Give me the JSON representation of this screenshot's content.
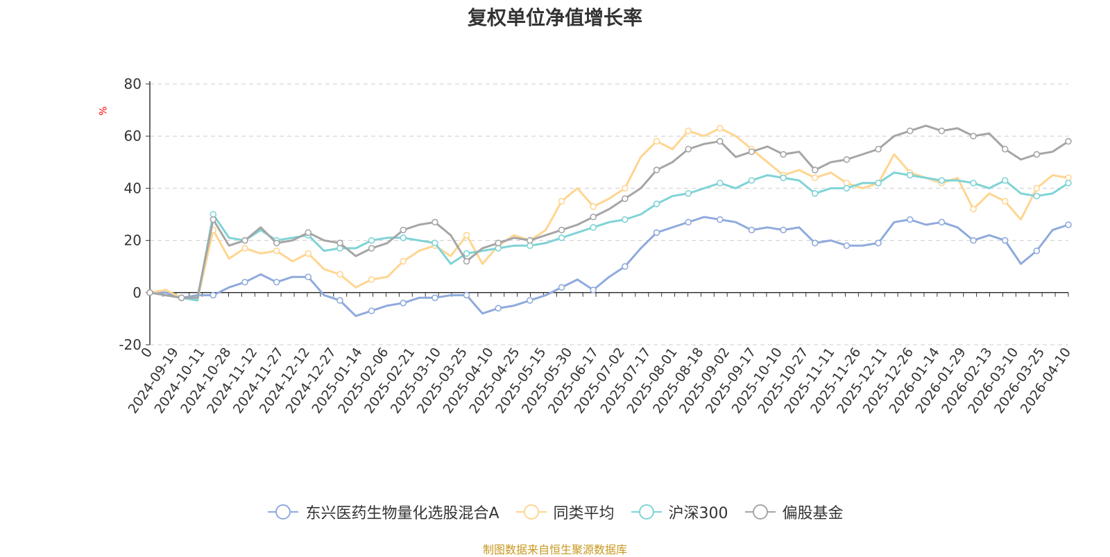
{
  "chart_data": {
    "type": "line",
    "title": "复权单位净值增长率",
    "ylabel": "%",
    "ylim": [
      -20,
      80
    ],
    "yticks": [
      "-20",
      "0",
      "20",
      "40",
      "60",
      "80"
    ],
    "grid": true,
    "legend_position": "bottom",
    "x_labels": [
      "0",
      "2024-09-19",
      "2024-10-11",
      "2024-10-28",
      "2024-11-12",
      "2024-11-27",
      "2024-12-12",
      "2024-12-27",
      "2025-01-14",
      "2025-02-06",
      "2025-02-21",
      "2025-03-10",
      "2025-03-25",
      "2025-04-10",
      "2025-04-25",
      "2025-05-15",
      "2025-05-30",
      "2025-06-17",
      "2025-07-02",
      "2025-07-17",
      "2025-08-01",
      "2025-08-18",
      "2025-09-02",
      "2025-09-17",
      "2025-10-10",
      "2025-10-27",
      "2025-11-11",
      "2025-11-26",
      "2025-12-11",
      "2025-12-26",
      "2026-01-14",
      "2026-01-29",
      "2026-02-13",
      "2026-03-10",
      "2026-03-25",
      "2026-04-10"
    ],
    "series": [
      {
        "name": "东兴医药生物量化选股混合A",
        "color": "#8faadc",
        "values": [
          0,
          0,
          -2,
          -1,
          -1,
          2,
          4,
          7,
          4,
          6,
          6,
          -1,
          -3,
          -9,
          -7,
          -5,
          -4,
          -2,
          -2,
          -1,
          -1,
          -8,
          -6,
          -5,
          -3,
          -1,
          2,
          5,
          1,
          6,
          10,
          17,
          23,
          25,
          27,
          29,
          28,
          27,
          24,
          25,
          24,
          25,
          19,
          20,
          18,
          18,
          19,
          27,
          28,
          26,
          27,
          25,
          20,
          22,
          20,
          11,
          16,
          24,
          26
        ]
      },
      {
        "name": "同类平均",
        "color": "#ffd590",
        "values": [
          0,
          1,
          -2,
          -3,
          24,
          13,
          17,
          15,
          16,
          12,
          15,
          9,
          7,
          2,
          5,
          6,
          12,
          16,
          18,
          14,
          22,
          11,
          18,
          22,
          20,
          24,
          35,
          40,
          33,
          36,
          40,
          52,
          58,
          55,
          62,
          60,
          63,
          60,
          55,
          50,
          45,
          47,
          44,
          46,
          42,
          40,
          42,
          53,
          46,
          44,
          42,
          44,
          32,
          38,
          35,
          28,
          40,
          45,
          44
        ]
      },
      {
        "name": "沪深300",
        "color": "#7fd3d6",
        "values": [
          0,
          -1,
          -2,
          -3,
          30,
          21,
          20,
          24,
          20,
          21,
          22,
          16,
          17,
          17,
          20,
          21,
          21,
          20,
          19,
          11,
          15,
          16,
          17,
          18,
          18,
          19,
          21,
          23,
          25,
          27,
          28,
          30,
          34,
          37,
          38,
          40,
          42,
          40,
          43,
          45,
          44,
          43,
          38,
          40,
          40,
          42,
          42,
          46,
          45,
          44,
          43,
          43,
          42,
          40,
          43,
          38,
          37,
          38,
          42
        ]
      },
      {
        "name": "偏股基金",
        "color": "#a5a5a5",
        "values": [
          0,
          -1,
          -2,
          -2,
          28,
          18,
          20,
          25,
          19,
          20,
          23,
          20,
          19,
          14,
          17,
          19,
          24,
          26,
          27,
          22,
          12,
          17,
          19,
          21,
          20,
          22,
          24,
          26,
          29,
          32,
          36,
          40,
          47,
          50,
          55,
          57,
          58,
          52,
          54,
          56,
          53,
          54,
          47,
          50,
          51,
          53,
          55,
          60,
          62,
          64,
          62,
          63,
          60,
          61,
          55,
          51,
          53,
          54,
          58
        ]
      }
    ]
  },
  "source": "制图数据来自恒生聚源数据库"
}
